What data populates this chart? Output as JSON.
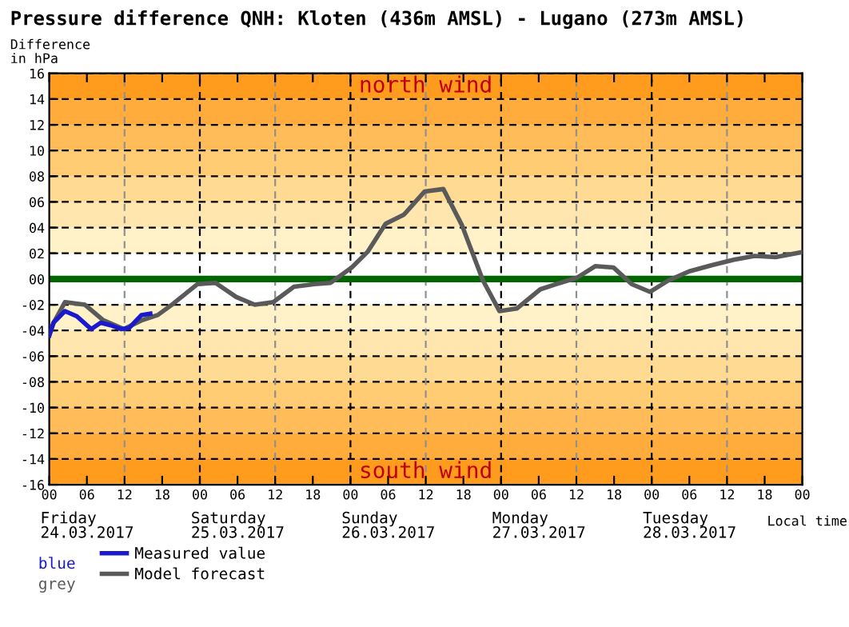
{
  "chart_data": {
    "type": "line",
    "title": "Pressure difference QNH: Kloten (436m AMSL) - Lugano (273m AMSL)",
    "ylabel": "Difference\nin hPa",
    "xlabel": "Local time",
    "xlim": [
      0,
      120
    ],
    "ylim": [
      -16,
      16
    ],
    "xticks": [
      {
        "value": 0,
        "label": "00"
      },
      {
        "value": 6,
        "label": "06"
      },
      {
        "value": 12,
        "label": "12"
      },
      {
        "value": 18,
        "label": "18"
      },
      {
        "value": 24,
        "label": "00"
      },
      {
        "value": 30,
        "label": "06"
      },
      {
        "value": 36,
        "label": "12"
      },
      {
        "value": 42,
        "label": "18"
      },
      {
        "value": 48,
        "label": "00"
      },
      {
        "value": 54,
        "label": "06"
      },
      {
        "value": 60,
        "label": "12"
      },
      {
        "value": 66,
        "label": "18"
      },
      {
        "value": 72,
        "label": "00"
      },
      {
        "value": 78,
        "label": "06"
      },
      {
        "value": 84,
        "label": "12"
      },
      {
        "value": 90,
        "label": "18"
      },
      {
        "value": 96,
        "label": "00"
      },
      {
        "value": 102,
        "label": "06"
      },
      {
        "value": 108,
        "label": "12"
      },
      {
        "value": 114,
        "label": "18"
      },
      {
        "value": 120,
        "label": "00"
      }
    ],
    "yticks": [
      16,
      14,
      12,
      10,
      {
        "value": 8,
        "label": "08"
      },
      {
        "value": 6,
        "label": "06"
      },
      {
        "value": 4,
        "label": "04"
      },
      {
        "value": 2,
        "label": "02"
      },
      {
        "value": 0,
        "label": "00"
      },
      {
        "value": -2,
        "label": "-02"
      },
      {
        "value": -4,
        "label": "-04"
      },
      {
        "value": -6,
        "label": "-06"
      },
      {
        "value": -8,
        "label": "-08"
      },
      -10,
      -12,
      -14,
      -16
    ],
    "grid": "y",
    "legend": "bottom left",
    "line_style": "solid",
    "marker": "none",
    "series": [
      {
        "name": "Measured value",
        "color": "#1a1acc",
        "x": [
          0,
          0.67,
          2.5,
          4.4,
          6.7,
          8.2,
          9.8,
          11.5,
          12.75,
          14.7,
          16.1
        ],
        "values": [
          -4.4,
          -3.4,
          -2.5,
          -2.9,
          -3.9,
          -3.4,
          -3.6,
          -3.9,
          -3.8,
          -2.8,
          -2.7
        ]
      },
      {
        "name": "Model forecast",
        "color": "#5a5a5a",
        "x": [
          0,
          0.7,
          2.5,
          5.7,
          8.6,
          11.9,
          14.8,
          17.3,
          19.8,
          23.6,
          26.5,
          29.8,
          32.75,
          35.7,
          39,
          42.3,
          44.8,
          48.2,
          50.7,
          53.6,
          56.5,
          59.8,
          62.8,
          65.75,
          69.1,
          71.75,
          74.5,
          78.25,
          80.75,
          84.1,
          87,
          89.9,
          92.8,
          95.75,
          98.7,
          102,
          105.75,
          109.1,
          112.4,
          115.75,
          120
        ],
        "values": [
          -4.4,
          -3.4,
          -1.8,
          -2.0,
          -3.2,
          -3.9,
          -3.2,
          -2.8,
          -1.9,
          -0.4,
          -0.3,
          -1.4,
          -2.0,
          -1.8,
          -0.6,
          -0.4,
          -0.3,
          0.9,
          2.1,
          4.3,
          5.0,
          6.8,
          7.0,
          4.2,
          -0.1,
          -2.5,
          -2.3,
          -0.8,
          -0.4,
          0.1,
          1.0,
          0.9,
          -0.4,
          -1.0,
          -0.1,
          0.6,
          1.1,
          1.5,
          1.8,
          1.7,
          2.1
        ]
      }
    ],
    "ref_lines": [
      {
        "axis": "y",
        "value": 0,
        "color": "#006600",
        "line_style": "solid"
      },
      {
        "axis": "x",
        "value": 24,
        "color": "#000000",
        "line_style": "dashed"
      },
      {
        "axis": "x",
        "value": 48,
        "color": "#000000",
        "line_style": "dashed"
      },
      {
        "axis": "x",
        "value": 72,
        "color": "#000000",
        "line_style": "dashed"
      },
      {
        "axis": "x",
        "value": 96,
        "color": "#000000",
        "line_style": "dashed"
      },
      {
        "axis": "x",
        "value": 12,
        "color": "#909090",
        "line_style": "dashed"
      },
      {
        "axis": "x",
        "value": 36,
        "color": "#909090",
        "line_style": "dashed"
      },
      {
        "axis": "x",
        "value": 60,
        "color": "#909090",
        "line_style": "dashed"
      },
      {
        "axis": "x",
        "value": 84,
        "color": "#909090",
        "line_style": "dashed"
      },
      {
        "axis": "x",
        "value": 108,
        "color": "#909090",
        "line_style": "dashed"
      }
    ],
    "bands": [
      {
        "axis": "y",
        "from": 14,
        "to": 16,
        "color": "#ff9c1e",
        "label": "north wind"
      },
      {
        "axis": "y",
        "from": 12,
        "to": 14,
        "color": "#ffac3c"
      },
      {
        "axis": "y",
        "from": 10,
        "to": 12,
        "color": "#ffbc58"
      },
      {
        "axis": "y",
        "from": 8,
        "to": 10,
        "color": "#ffcc74"
      },
      {
        "axis": "y",
        "from": 6,
        "to": 8,
        "color": "#ffda92"
      },
      {
        "axis": "y",
        "from": 4,
        "to": 6,
        "color": "#ffe6ae"
      },
      {
        "axis": "y",
        "from": 2,
        "to": 4,
        "color": "#fff2c8"
      },
      {
        "axis": "y",
        "from": -2,
        "to": 2,
        "color": "#ffffff"
      },
      {
        "axis": "y",
        "from": -4,
        "to": -2,
        "color": "#fff2c8"
      },
      {
        "axis": "y",
        "from": -6,
        "to": -4,
        "color": "#ffe6ae"
      },
      {
        "axis": "y",
        "from": -8,
        "to": -6,
        "color": "#ffda92"
      },
      {
        "axis": "y",
        "from": -10,
        "to": -8,
        "color": "#ffcc74"
      },
      {
        "axis": "y",
        "from": -12,
        "to": -10,
        "color": "#ffbc58"
      },
      {
        "axis": "y",
        "from": -14,
        "to": -12,
        "color": "#ffac3c"
      },
      {
        "axis": "y",
        "from": -16,
        "to": -14,
        "color": "#ff9c1e",
        "label": "south wind"
      }
    ],
    "annotations": [
      {
        "text": "Friday\n24.03.2017",
        "x": 0,
        "y": -16
      },
      {
        "text": "Saturday\n25.03.2017",
        "x": 24,
        "y": -16
      },
      {
        "text": "Sunday\n26.03.2017",
        "x": 48,
        "y": -16
      },
      {
        "text": "Monday\n27.03.2017",
        "x": 72,
        "y": -16
      },
      {
        "text": "Tuesday\n28.03.2017",
        "x": 96,
        "y": -16
      },
      "blue",
      "grey"
    ]
  }
}
